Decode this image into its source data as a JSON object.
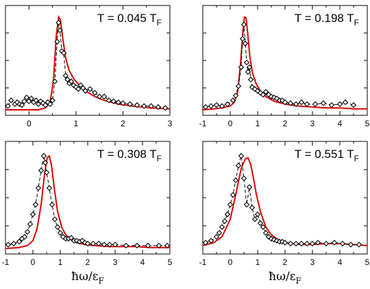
{
  "chart_data": [
    {
      "type": "line",
      "title_prefix": "T = 0.045 T",
      "title_sub": "F",
      "xlim": [
        -0.5,
        3
      ],
      "xticks": [
        0,
        1,
        2,
        3
      ],
      "xtick_labels": [
        "0",
        "1",
        "2",
        "3"
      ],
      "xlabel_main": "",
      "xlabel_sub": "",
      "ylim": [
        0,
        1
      ],
      "series": [
        {
          "kind": "data",
          "x": [
            -0.45,
            -0.38,
            -0.3,
            -0.25,
            -0.2,
            -0.15,
            -0.1,
            -0.05,
            0.0,
            0.05,
            0.1,
            0.15,
            0.2,
            0.25,
            0.3,
            0.35,
            0.4,
            0.45,
            0.5,
            0.55,
            0.6,
            0.63,
            0.66,
            0.7,
            0.74,
            0.78,
            0.82,
            0.86,
            0.9,
            0.95,
            1.0,
            1.05,
            1.1,
            1.15,
            1.2,
            1.3,
            1.4,
            1.5,
            1.6,
            1.7,
            1.8,
            1.9,
            2.0,
            2.15,
            2.3,
            2.45,
            2.6,
            2.75,
            2.9
          ],
          "y": [
            0.04,
            0.1,
            0.06,
            0.08,
            0.06,
            0.05,
            0.09,
            0.13,
            0.09,
            0.12,
            0.08,
            0.1,
            0.06,
            0.09,
            0.07,
            0.05,
            0.08,
            0.06,
            0.1,
            0.3,
            0.72,
            0.92,
            0.84,
            0.62,
            0.6,
            0.36,
            0.32,
            0.28,
            0.3,
            0.26,
            0.24,
            0.22,
            0.26,
            0.23,
            0.2,
            0.22,
            0.18,
            0.14,
            0.14,
            0.1,
            0.09,
            0.08,
            0.07,
            0.06,
            0.05,
            0.04,
            0.04,
            0.03,
            0.02
          ]
        },
        {
          "kind": "fit",
          "x": [
            -0.5,
            -0.2,
            0.0,
            0.2,
            0.35,
            0.45,
            0.52,
            0.58,
            0.63,
            0.67,
            0.72,
            0.78,
            0.85,
            0.95,
            1.05,
            1.2,
            1.4,
            1.6,
            1.9,
            2.2,
            2.6,
            3.0
          ],
          "y": [
            0.0,
            0.0,
            0.0,
            0.0,
            0.02,
            0.08,
            0.3,
            0.78,
            0.98,
            0.95,
            0.75,
            0.55,
            0.42,
            0.33,
            0.27,
            0.2,
            0.14,
            0.1,
            0.06,
            0.04,
            0.02,
            0.01
          ]
        }
      ]
    },
    {
      "type": "line",
      "title_prefix": "T = 0.198 T",
      "title_sub": "F",
      "xlim": [
        -1,
        5
      ],
      "xticks": [
        -1,
        0,
        1,
        2,
        3,
        4,
        5
      ],
      "xtick_labels": [
        "-1",
        "0",
        "1",
        "2",
        "3",
        "4",
        "5"
      ],
      "xlabel_main": "",
      "xlabel_sub": "",
      "ylim": [
        0,
        1
      ],
      "series": [
        {
          "kind": "data",
          "x": [
            -0.9,
            -0.7,
            -0.5,
            -0.3,
            -0.1,
            0.1,
            0.2,
            0.3,
            0.4,
            0.45,
            0.5,
            0.55,
            0.6,
            0.65,
            0.7,
            0.75,
            0.8,
            0.9,
            1.0,
            1.1,
            1.2,
            1.3,
            1.4,
            1.5,
            1.6,
            1.7,
            1.8,
            1.9,
            2.0,
            2.2,
            2.4,
            2.6,
            2.8,
            3.1,
            3.4,
            3.7,
            4.0,
            4.2,
            4.5
          ],
          "y": [
            0.03,
            0.04,
            0.05,
            0.04,
            0.06,
            0.1,
            0.15,
            0.25,
            0.45,
            0.75,
            0.9,
            0.7,
            0.5,
            0.4,
            0.45,
            0.32,
            0.24,
            0.22,
            0.2,
            0.18,
            0.16,
            0.19,
            0.16,
            0.14,
            0.13,
            0.12,
            0.1,
            0.1,
            0.08,
            0.07,
            0.06,
            0.08,
            0.06,
            0.06,
            0.07,
            0.05,
            0.06,
            0.08,
            0.05
          ]
        },
        {
          "kind": "fit",
          "x": [
            -1.0,
            -0.6,
            -0.3,
            0.0,
            0.15,
            0.28,
            0.38,
            0.46,
            0.52,
            0.58,
            0.64,
            0.72,
            0.82,
            0.95,
            1.1,
            1.3,
            1.6,
            2.0,
            2.5,
            3.0,
            3.5,
            4.0,
            4.5,
            5.0
          ],
          "y": [
            0.0,
            0.01,
            0.02,
            0.04,
            0.08,
            0.2,
            0.5,
            0.82,
            0.98,
            0.97,
            0.8,
            0.55,
            0.38,
            0.27,
            0.2,
            0.14,
            0.09,
            0.06,
            0.04,
            0.03,
            0.02,
            0.02,
            0.01,
            0.01
          ]
        }
      ]
    },
    {
      "type": "line",
      "title_prefix": "T = 0.308 T",
      "title_sub": "F",
      "xlim": [
        -1,
        5
      ],
      "xticks": [
        -1,
        0,
        1,
        2,
        3,
        4,
        5
      ],
      "xtick_labels": [
        "-1",
        "0",
        "1",
        "2",
        "3",
        "4",
        "5"
      ],
      "xlabel_main": "ħω/ε",
      "xlabel_sub": "F",
      "ylim": [
        0,
        1
      ],
      "series": [
        {
          "kind": "data",
          "x": [
            -0.9,
            -0.7,
            -0.5,
            -0.4,
            -0.3,
            -0.2,
            -0.1,
            0.0,
            0.1,
            0.2,
            0.3,
            0.4,
            0.45,
            0.5,
            0.6,
            0.7,
            0.8,
            0.9,
            1.0,
            1.1,
            1.2,
            1.3,
            1.4,
            1.5,
            1.6,
            1.7,
            1.8,
            1.9,
            2.0,
            2.2,
            2.4,
            2.6,
            2.8,
            3.0,
            3.4,
            3.8,
            4.2,
            4.6,
            4.9
          ],
          "y": [
            0.04,
            0.05,
            0.07,
            0.1,
            0.12,
            0.17,
            0.25,
            0.35,
            0.45,
            0.62,
            0.8,
            0.95,
            0.88,
            0.78,
            0.62,
            0.45,
            0.3,
            0.22,
            0.16,
            0.12,
            0.1,
            0.1,
            0.11,
            0.08,
            0.08,
            0.07,
            0.08,
            0.06,
            0.05,
            0.05,
            0.05,
            0.04,
            0.04,
            0.04,
            0.03,
            0.03,
            0.03,
            0.03,
            0.03
          ]
        },
        {
          "kind": "fit",
          "x": [
            -1.0,
            -0.5,
            -0.2,
            0.0,
            0.15,
            0.3,
            0.42,
            0.52,
            0.6,
            0.68,
            0.78,
            0.9,
            1.05,
            1.2,
            1.4,
            1.6,
            1.9,
            2.3,
            2.8,
            3.3,
            3.8,
            4.3,
            5.0
          ],
          "y": [
            0.0,
            0.01,
            0.03,
            0.08,
            0.2,
            0.45,
            0.75,
            0.93,
            0.95,
            0.85,
            0.62,
            0.38,
            0.22,
            0.14,
            0.09,
            0.06,
            0.04,
            0.03,
            0.02,
            0.02,
            0.02,
            0.01,
            0.01
          ]
        }
      ]
    },
    {
      "type": "line",
      "title_prefix": "T = 0.551 T",
      "title_sub": "F",
      "xlim": [
        -1,
        5
      ],
      "xticks": [
        -1,
        0,
        1,
        2,
        3,
        4,
        5
      ],
      "xtick_labels": [
        "-1",
        "0",
        "1",
        "2",
        "3",
        "4",
        "5"
      ],
      "xlabel_main": "ħω/ε",
      "xlabel_sub": "F",
      "ylim": [
        0,
        1
      ],
      "series": [
        {
          "kind": "data",
          "x": [
            -0.9,
            -0.7,
            -0.5,
            -0.4,
            -0.3,
            -0.2,
            -0.1,
            0.0,
            0.1,
            0.2,
            0.3,
            0.4,
            0.5,
            0.6,
            0.7,
            0.8,
            0.9,
            1.0,
            1.1,
            1.2,
            1.3,
            1.4,
            1.5,
            1.6,
            1.7,
            1.8,
            1.9,
            2.0,
            2.2,
            2.4,
            2.6,
            2.8,
            3.0,
            3.2,
            3.5,
            3.8,
            4.1,
            4.4,
            4.7
          ],
          "y": [
            0.06,
            0.08,
            0.12,
            0.16,
            0.22,
            0.28,
            0.35,
            0.45,
            0.55,
            0.7,
            0.85,
            0.95,
            0.72,
            0.45,
            0.63,
            0.42,
            0.3,
            0.35,
            0.26,
            0.22,
            0.16,
            0.12,
            0.1,
            0.09,
            0.08,
            0.07,
            0.07,
            0.06,
            0.05,
            0.05,
            0.05,
            0.05,
            0.05,
            0.06,
            0.05,
            0.06,
            0.05,
            0.04,
            0.04
          ]
        },
        {
          "kind": "fit",
          "x": [
            -1.0,
            -0.6,
            -0.3,
            0.0,
            0.2,
            0.4,
            0.55,
            0.65,
            0.75,
            0.85,
            0.95,
            1.1,
            1.3,
            1.5,
            1.8,
            2.2,
            2.6,
            3.0,
            3.5,
            4.0,
            4.5,
            5.0
          ],
          "y": [
            0.03,
            0.06,
            0.12,
            0.3,
            0.55,
            0.82,
            0.92,
            0.93,
            0.86,
            0.72,
            0.56,
            0.38,
            0.22,
            0.14,
            0.08,
            0.05,
            0.04,
            0.04,
            0.05,
            0.05,
            0.04,
            0.03
          ]
        }
      ]
    }
  ]
}
